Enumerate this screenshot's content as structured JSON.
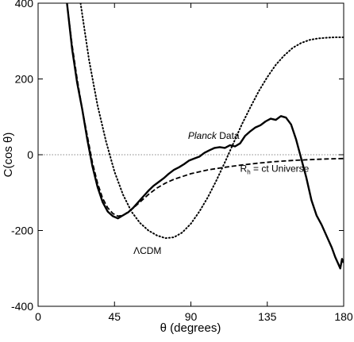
{
  "chart_data": {
    "type": "line",
    "xlabel": "θ (degrees)",
    "ylabel": "C(cos θ)",
    "xlim": [
      0,
      180
    ],
    "ylim": [
      -400,
      400
    ],
    "xticks": [
      0,
      45,
      90,
      135,
      180
    ],
    "yticks": [
      -400,
      -200,
      0,
      200,
      400
    ],
    "x_tick_labels": [
      "0",
      "45",
      "90",
      "135",
      "180"
    ],
    "y_tick_labels": [
      "-400",
      "-200",
      "0",
      "200",
      "400"
    ],
    "zero_line": true,
    "grid": false,
    "legend": "none",
    "series": [
      {
        "name": "Planck Data",
        "style": "solid",
        "x": [
          17,
          20,
          23,
          26,
          29,
          32,
          35,
          38,
          41,
          44,
          47,
          50,
          53,
          56,
          59,
          62,
          65,
          68,
          71,
          74,
          77,
          80,
          83,
          86,
          89,
          92,
          95,
          98,
          101,
          104,
          107,
          110,
          113,
          116,
          119,
          122,
          125,
          128,
          131,
          134,
          137,
          140,
          143,
          146,
          149,
          152,
          155,
          158,
          161,
          164,
          167,
          170,
          173,
          175,
          177,
          178,
          179,
          180
        ],
        "y": [
          400,
          280,
          190,
          120,
          40,
          -30,
          -85,
          -125,
          -150,
          -162,
          -168,
          -160,
          -152,
          -140,
          -125,
          -110,
          -95,
          -82,
          -72,
          -62,
          -50,
          -40,
          -33,
          -25,
          -15,
          -10,
          -5,
          5,
          12,
          18,
          20,
          18,
          25,
          22,
          30,
          50,
          62,
          72,
          78,
          88,
          95,
          92,
          102,
          98,
          80,
          40,
          -10,
          -60,
          -120,
          -160,
          -185,
          -215,
          -245,
          -270,
          -290,
          -300,
          -275,
          -285
        ]
      },
      {
        "name": "R_h = ct Universe",
        "style": "dashed",
        "x": [
          17,
          20,
          23,
          26,
          29,
          32,
          35,
          38,
          41,
          44,
          47,
          50,
          55,
          60,
          65,
          70,
          75,
          80,
          90,
          100,
          110,
          120,
          130,
          140,
          150,
          160,
          170,
          180
        ],
        "y": [
          400,
          290,
          200,
          120,
          50,
          -20,
          -75,
          -115,
          -140,
          -155,
          -162,
          -160,
          -145,
          -125,
          -105,
          -88,
          -75,
          -65,
          -50,
          -40,
          -33,
          -27,
          -22,
          -18,
          -15,
          -13,
          -11,
          -10
        ]
      },
      {
        "name": "ΛCDM",
        "style": "dotted",
        "x": [
          25,
          30,
          35,
          40,
          45,
          50,
          55,
          60,
          65,
          70,
          75,
          80,
          85,
          90,
          95,
          100,
          105,
          110,
          115,
          120,
          125,
          130,
          135,
          140,
          145,
          150,
          155,
          160,
          165,
          170,
          175,
          180
        ],
        "y": [
          400,
          250,
          130,
          35,
          -45,
          -105,
          -150,
          -180,
          -200,
          -213,
          -220,
          -218,
          -205,
          -182,
          -150,
          -112,
          -68,
          -20,
          30,
          80,
          125,
          168,
          205,
          237,
          262,
          282,
          295,
          303,
          307,
          309,
          310,
          310
        ]
      }
    ],
    "annotations": [
      {
        "text_italic": "Planck",
        "text": " Data",
        "x": 100,
        "y": 42
      },
      {
        "text_prefix": "R",
        "text_sub": "h",
        "text": " = ct Universe",
        "x": 119,
        "y": -45
      },
      {
        "text": "ΛCDM",
        "x": 63,
        "y": -262
      }
    ]
  }
}
